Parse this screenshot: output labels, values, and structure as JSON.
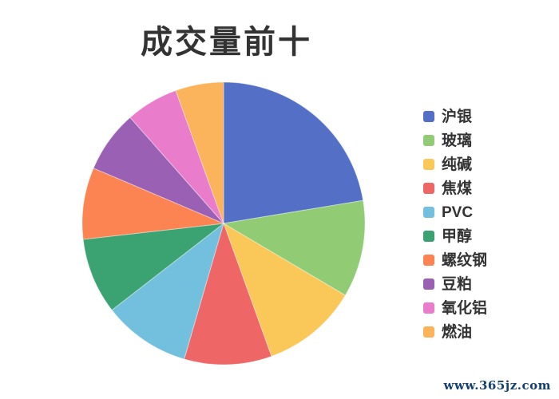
{
  "title": "成交量前十",
  "watermark": "www.365jz.com",
  "chart_data": {
    "type": "pie",
    "title": "成交量前十",
    "legend_position": "right",
    "start_angle": "top",
    "direction": "clockwise",
    "series": [
      {
        "name": "沪银",
        "value": 22.4,
        "color": "#5470c6"
      },
      {
        "name": "玻璃",
        "value": 11.1,
        "color": "#91cc75"
      },
      {
        "name": "纯碱",
        "value": 11.0,
        "color": "#fac858"
      },
      {
        "name": "焦煤",
        "value": 10.0,
        "color": "#ee6666"
      },
      {
        "name": "PVC",
        "value": 10.0,
        "color": "#73c0de"
      },
      {
        "name": "甲醇",
        "value": 8.7,
        "color": "#3ba272"
      },
      {
        "name": "螺纹钢",
        "value": 8.2,
        "color": "#fc8452"
      },
      {
        "name": "豆粕",
        "value": 7.1,
        "color": "#9a60b4"
      },
      {
        "name": "氧化铝",
        "value": 6.0,
        "color": "#ea7ccc"
      },
      {
        "name": "燃油",
        "value": 5.5,
        "color": "#fbb45c"
      }
    ]
  }
}
